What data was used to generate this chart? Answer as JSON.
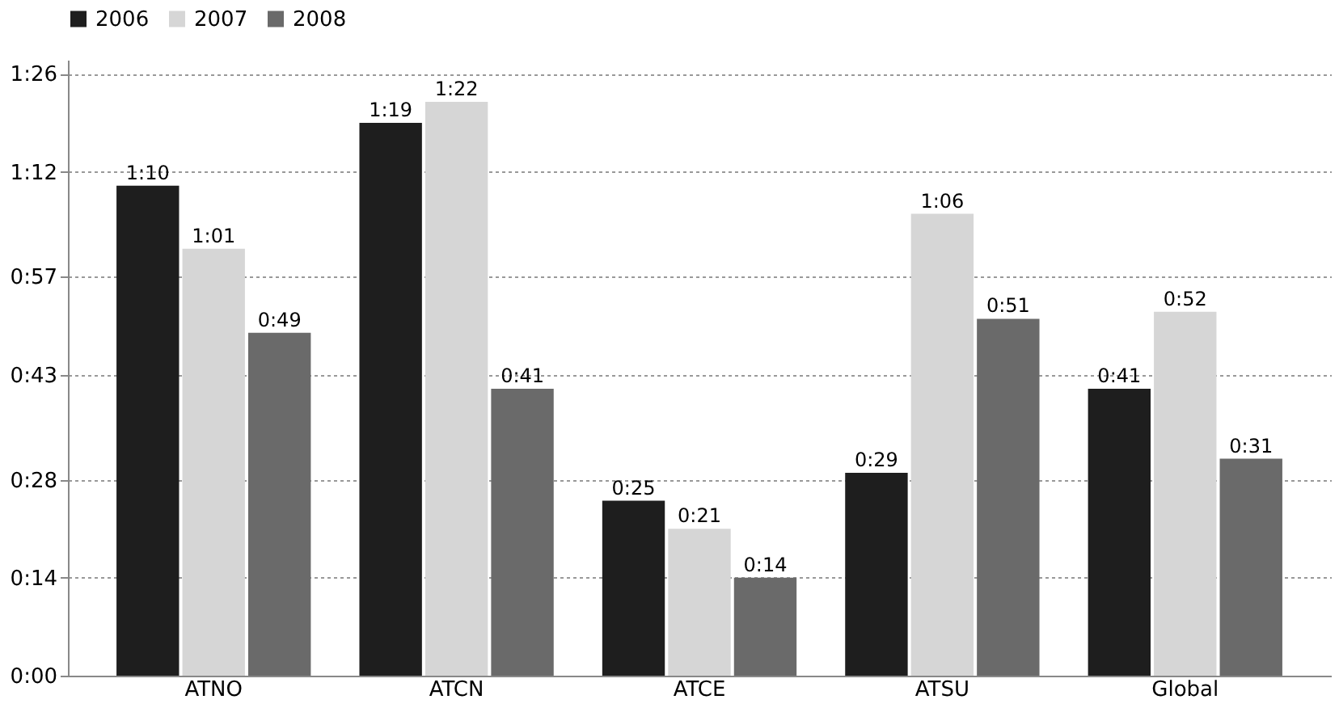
{
  "chart_data": {
    "type": "bar",
    "categories": [
      "ATNO",
      "ATCN",
      "ATCE",
      "ATSU",
      "Global"
    ],
    "series": [
      {
        "name": "2006",
        "color": "#1e1e1e",
        "values": [
          70,
          79,
          25,
          29,
          41
        ],
        "value_labels": [
          "1:10",
          "1:19",
          "0:25",
          "0:29",
          "0:41"
        ]
      },
      {
        "name": "2007",
        "color": "#d6d6d6",
        "values": [
          61,
          82,
          21,
          66,
          52
        ],
        "value_labels": [
          "1:01",
          "1:22",
          "0:21",
          "1:06",
          "0:52"
        ]
      },
      {
        "name": "2008",
        "color": "#6a6a6a",
        "values": [
          49,
          41,
          14,
          51,
          31
        ],
        "value_labels": [
          "0:49",
          "0:41",
          "0:14",
          "0:51",
          "0:31"
        ]
      }
    ],
    "ylim": [
      0,
      88
    ],
    "yticks": [
      {
        "value": 0,
        "label": "0:00"
      },
      {
        "value": 14,
        "label": "0:14"
      },
      {
        "value": 28,
        "label": "0:28"
      },
      {
        "value": 43,
        "label": "0:43"
      },
      {
        "value": 57,
        "label": "0:57"
      },
      {
        "value": 72,
        "label": "1:12"
      },
      {
        "value": 86,
        "label": "1:26"
      }
    ],
    "grid": "y",
    "legend": "top"
  }
}
